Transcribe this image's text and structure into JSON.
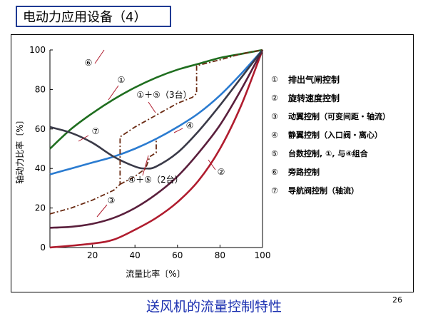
{
  "slide": {
    "title": "电动力应用设备（4）",
    "caption": "送风机的流量控制特性",
    "page_number": "26"
  },
  "chart_data": {
    "type": "line",
    "xlabel": "流量比率〔%〕",
    "ylabel": "轴动力比率〔%〕",
    "xlim": [
      0,
      100
    ],
    "ylim": [
      0,
      100
    ],
    "x_ticks": [
      "20",
      "40",
      "60",
      "80",
      "100"
    ],
    "y_ticks": [
      "0",
      "20",
      "40",
      "60",
      "80",
      "100"
    ],
    "grid": false,
    "legend": {
      "placement": "right",
      "items": [
        {
          "num": "①",
          "text": "排出气闸控制"
        },
        {
          "num": "②",
          "text": "旋转速度控制"
        },
        {
          "num": "③",
          "text": "动翼控制（可变间距・轴流）"
        },
        {
          "num": "④",
          "text": "静翼控制（入口阀・离心）"
        },
        {
          "num": "⑤",
          "text": "台数控制, ①, 与④组合"
        },
        {
          "num": "⑥",
          "text": "旁路控制"
        },
        {
          "num": "⑦",
          "text": "导航阀控制（轴流）"
        }
      ]
    },
    "series": [
      {
        "id": "1",
        "color": "#1f6e1f",
        "style": "solid",
        "x": [
          0,
          10,
          20,
          30,
          40,
          50,
          60,
          70,
          80,
          90,
          100
        ],
        "y": [
          50,
          60,
          68,
          75,
          81,
          86,
          90,
          93,
          96,
          98,
          100
        ]
      },
      {
        "id": "2",
        "color": "#b01c2e",
        "style": "solid",
        "x": [
          0,
          20,
          30,
          40,
          50,
          60,
          70,
          80,
          90,
          100
        ],
        "y": [
          0,
          2,
          4,
          9,
          15,
          23,
          34,
          50,
          72,
          100
        ]
      },
      {
        "id": "3",
        "color": "#5a1f3c",
        "style": "solid",
        "x": [
          0,
          10,
          20,
          30,
          40,
          50,
          60,
          70,
          80,
          90,
          100
        ],
        "y": [
          10,
          10.5,
          12,
          15,
          20,
          27,
          36,
          48,
          62,
          80,
          100
        ]
      },
      {
        "id": "4",
        "color": "#2a7bd0",
        "style": "solid",
        "x": [
          0,
          10,
          20,
          30,
          40,
          50,
          60,
          70,
          80,
          90,
          100
        ],
        "y": [
          37,
          40,
          43,
          46,
          50,
          55,
          61,
          68,
          77,
          88,
          100
        ]
      },
      {
        "id": "7",
        "color": "#3a3a48",
        "style": "solid",
        "x": [
          0,
          10,
          20,
          30,
          40,
          45,
          50,
          60,
          70,
          80,
          90,
          100
        ],
        "y": [
          61,
          58,
          53,
          46,
          41,
          40,
          41,
          48,
          59,
          72,
          86,
          100
        ]
      },
      {
        "id": "5-3",
        "color": "#6a2a12",
        "style": "dashdot",
        "x": [
          0,
          10,
          20,
          30,
          33,
          33,
          40,
          50,
          60,
          67,
          69,
          69,
          80,
          90,
          100
        ],
        "y": [
          17,
          20,
          24,
          29,
          32,
          56,
          61,
          67,
          73,
          76,
          78,
          92,
          95,
          98,
          100
        ]
      },
      {
        "id": "5-2",
        "color": "#6a2a12",
        "style": "dashdot",
        "x": [
          33,
          40,
          45,
          47,
          50,
          50
        ],
        "y": [
          32,
          36,
          40,
          46,
          48,
          55
        ]
      }
    ],
    "annotations": [
      {
        "text": "⑥"
      },
      {
        "text": "①"
      },
      {
        "text": "①＋⑤（3台）"
      },
      {
        "text": "⑦"
      },
      {
        "text": "④"
      },
      {
        "text": "④＋⑤（2台）"
      },
      {
        "text": "③"
      },
      {
        "text": "②"
      }
    ]
  }
}
